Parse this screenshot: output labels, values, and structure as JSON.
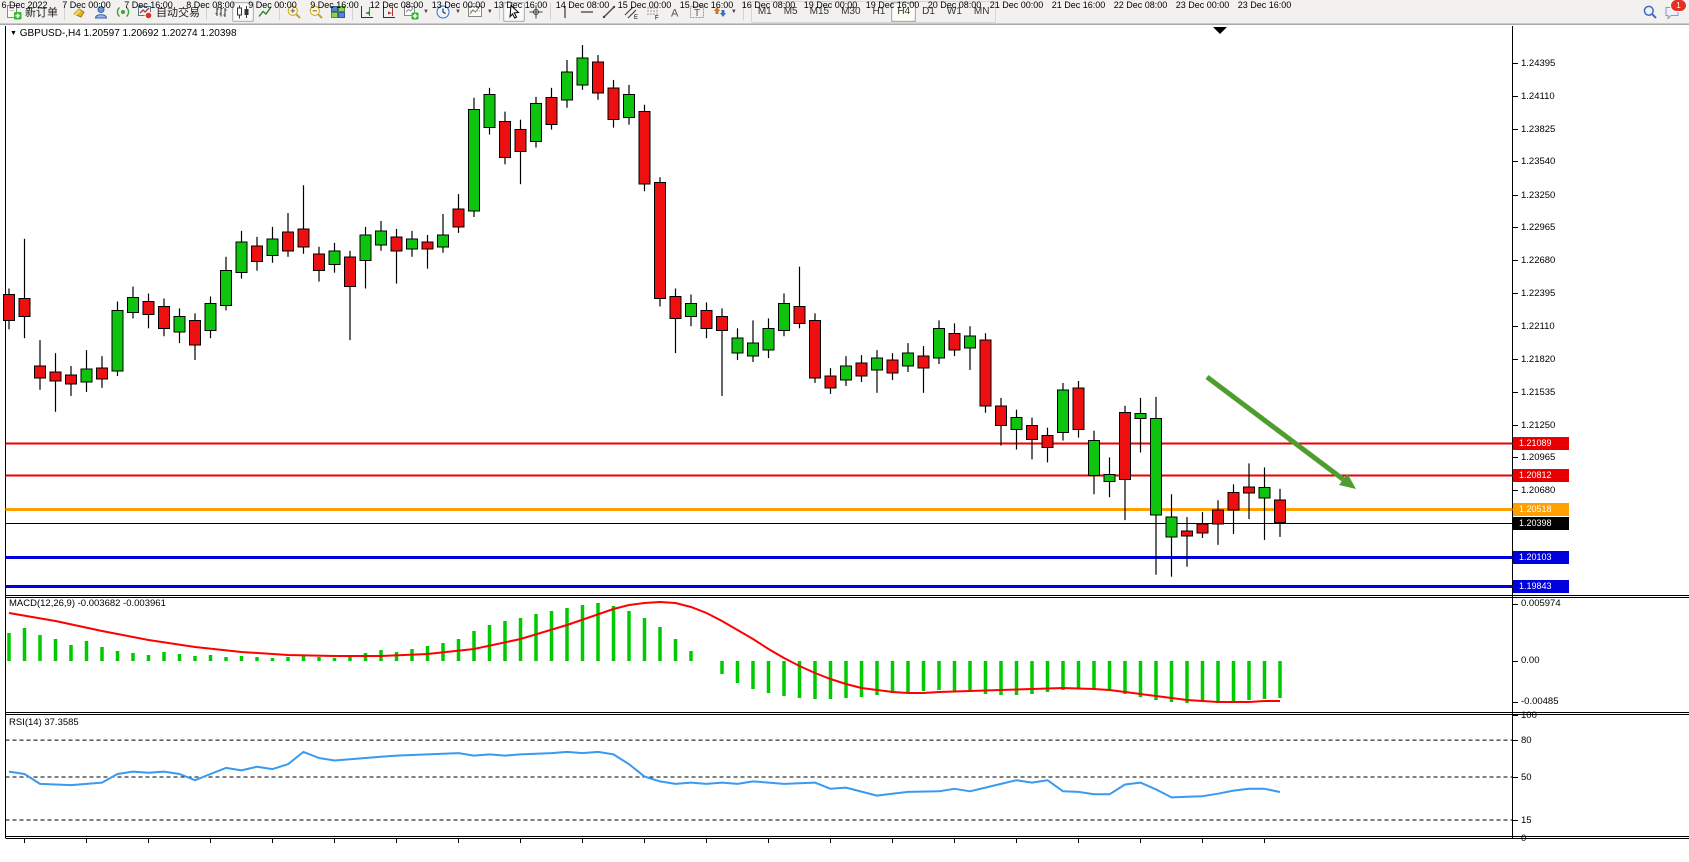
{
  "toolbar": {
    "new_order_label": "新订单",
    "autotrade_label": "自动交易",
    "timeframes": [
      "M1",
      "M5",
      "M15",
      "M30",
      "H1",
      "H4",
      "D1",
      "W1",
      "MN"
    ],
    "selected_timeframe": "H4",
    "notification_count": "1"
  },
  "chart": {
    "title": "GBPUSD-,H4  1.20597 1.20692 1.20274 1.20398",
    "symbol_period": "GBPUSD-,H4"
  },
  "macd_label": "MACD(12,26,9) -0.003682 -0.003961",
  "rsi_label": "RSI(14) 37.3585",
  "chart_data": {
    "type": "candlestick",
    "symbol": "GBPUSD-",
    "timeframe": "H4",
    "current_bar": {
      "open": 1.20597,
      "high": 1.20692,
      "low": 1.20274,
      "close": 1.20398
    },
    "price_axis_ticks": [
      "1.24395",
      "1.24110",
      "1.23825",
      "1.23540",
      "1.23250",
      "1.22965",
      "1.22680",
      "1.22395",
      "1.22110",
      "1.21820",
      "1.21535",
      "1.21250",
      "1.20965",
      "1.20680"
    ],
    "ylim": [
      1.198,
      1.2472
    ],
    "grid": false,
    "hlines": [
      {
        "price": 1.21089,
        "label": "1.21089",
        "color": "#e80000",
        "width": 2
      },
      {
        "price": 1.20812,
        "label": "1.20812",
        "color": "#e80000",
        "width": 2
      },
      {
        "price": 1.20518,
        "label": "1.20518",
        "color": "#ffa000",
        "width": 3
      },
      {
        "price": 1.20398,
        "label": "1.20398",
        "color": "#000000",
        "width": 1
      },
      {
        "price": 1.20103,
        "label": "1.20103",
        "color": "#0000dd",
        "width": 3
      },
      {
        "price": 1.19843,
        "label": "1.19843",
        "color": "#0000dd",
        "width": 3
      }
    ],
    "x_labels": [
      "6 Dec 2022",
      "7 Dec 00:00",
      "7 Dec 16:00",
      "8 Dec 08:00",
      "9 Dec 00:00",
      "9 Dec 16:00",
      "12 Dec 08:00",
      "13 Dec 00:00",
      "13 Dec 16:00",
      "14 Dec 08:00",
      "15 Dec 00:00",
      "15 Dec 16:00",
      "16 Dec 08:00",
      "19 Dec 00:00",
      "19 Dec 16:00",
      "20 Dec 08:00",
      "21 Dec 00:00",
      "21 Dec 16:00",
      "22 Dec 08:00",
      "23 Dec 00:00",
      "23 Dec 16:00"
    ],
    "bull_color": "#0fc40f",
    "bear_color": "#ee1010",
    "candles": [
      [
        1.22382,
        1.22434,
        1.22079,
        1.22157
      ],
      [
        1.22347,
        1.22866,
        1.22002,
        1.22192
      ],
      [
        1.2176,
        1.21985,
        1.21553,
        1.21656
      ],
      [
        1.21708,
        1.21872,
        1.21362,
        1.2163
      ],
      [
        1.21682,
        1.2176,
        1.215,
        1.21604
      ],
      [
        1.21621,
        1.21898,
        1.21535,
        1.21734
      ],
      [
        1.21742,
        1.21846,
        1.2157,
        1.21647
      ],
      [
        1.21717,
        1.22321,
        1.21673,
        1.22244
      ],
      [
        1.22226,
        1.22451,
        1.22174,
        1.22356
      ],
      [
        1.22321,
        1.2239,
        1.22088,
        1.22209
      ],
      [
        1.22278,
        1.22347,
        1.22019,
        1.22088
      ],
      [
        1.22054,
        1.22261,
        1.21959,
        1.22192
      ],
      [
        1.22157,
        1.22218,
        1.21812,
        1.21941
      ],
      [
        1.22071,
        1.22365,
        1.22002,
        1.22304
      ],
      [
        1.22287,
        1.2271,
        1.22244,
        1.22589
      ],
      [
        1.22572,
        1.22935,
        1.2252,
        1.2284
      ],
      [
        1.22805,
        1.22883,
        1.22589,
        1.22667
      ],
      [
        1.22719,
        1.2297,
        1.22658,
        1.22866
      ],
      [
        1.22926,
        1.2309,
        1.2271,
        1.22762
      ],
      [
        1.22952,
        1.23332,
        1.22736,
        1.22797
      ],
      [
        1.22736,
        1.22797,
        1.22494,
        1.22589
      ],
      [
        1.22641,
        1.22831,
        1.22572,
        1.22762
      ],
      [
        1.2271,
        1.22762,
        1.21985,
        1.22451
      ],
      [
        1.22676,
        1.2297,
        1.22434,
        1.229
      ],
      [
        1.22814,
        1.23021,
        1.22762,
        1.22935
      ],
      [
        1.22883,
        1.22952,
        1.22477,
        1.22762
      ],
      [
        1.22779,
        1.22935,
        1.2271,
        1.22866
      ],
      [
        1.2284,
        1.229,
        1.22607,
        1.22779
      ],
      [
        1.22797,
        1.23082,
        1.22745,
        1.229
      ],
      [
        1.23125,
        1.23255,
        1.22918,
        1.2297
      ],
      [
        1.23108,
        1.24093,
        1.23056,
        1.23989
      ],
      [
        1.23833,
        1.24179,
        1.23773,
        1.24119
      ],
      [
        1.23885,
        1.23972,
        1.23514,
        1.23574
      ],
      [
        1.23816,
        1.23902,
        1.23341,
        1.23626
      ],
      [
        1.23712,
        1.24101,
        1.2366,
        1.24041
      ],
      [
        1.24093,
        1.24179,
        1.23816,
        1.23859
      ],
      [
        1.24075,
        1.24421,
        1.24006,
        1.24317
      ],
      [
        1.24205,
        1.24551,
        1.24162,
        1.24438
      ],
      [
        1.24404,
        1.24464,
        1.24075,
        1.24136
      ],
      [
        1.24179,
        1.24248,
        1.23833,
        1.23902
      ],
      [
        1.2392,
        1.24205,
        1.23859,
        1.24119
      ],
      [
        1.23972,
        1.24032,
        1.2328,
        1.23341
      ],
      [
        1.23358,
        1.23401,
        1.22278,
        1.22347
      ],
      [
        1.22365,
        1.22434,
        1.21872,
        1.22174
      ],
      [
        1.22192,
        1.22382,
        1.22106,
        1.22304
      ],
      [
        1.22244,
        1.22313,
        1.22002,
        1.22088
      ],
      [
        1.22192,
        1.22261,
        1.215,
        1.22071
      ],
      [
        1.21872,
        1.22088,
        1.21812,
        1.22002
      ],
      [
        1.21846,
        1.22157,
        1.21795,
        1.21959
      ],
      [
        1.21898,
        1.22174,
        1.21829,
        1.22088
      ],
      [
        1.22071,
        1.22391,
        1.22019,
        1.22304
      ],
      [
        1.22278,
        1.22624,
        1.22088,
        1.22131
      ],
      [
        1.22157,
        1.22218,
        1.21613,
        1.21656
      ],
      [
        1.21673,
        1.21742,
        1.21518,
        1.2157
      ],
      [
        1.21639,
        1.21846,
        1.21587,
        1.2176
      ],
      [
        1.21786,
        1.21855,
        1.21621,
        1.21673
      ],
      [
        1.21726,
        1.21898,
        1.21527,
        1.21829
      ],
      [
        1.21812,
        1.21872,
        1.21639,
        1.21699
      ],
      [
        1.2176,
        1.21959,
        1.21708,
        1.21872
      ],
      [
        1.21846,
        1.21933,
        1.21527,
        1.21742
      ],
      [
        1.21829,
        1.22157,
        1.21777,
        1.22088
      ],
      [
        1.22045,
        1.22131,
        1.21846,
        1.21898
      ],
      [
        1.21915,
        1.22106,
        1.21726,
        1.22019
      ],
      [
        1.21985,
        1.22045,
        1.21354,
        1.21414
      ],
      [
        1.21414,
        1.21483,
        1.21068,
        1.21241
      ],
      [
        1.21207,
        1.2138,
        1.21034,
        1.21311
      ],
      [
        1.21241,
        1.21311,
        1.20948,
        1.21121
      ],
      [
        1.21155,
        1.21224,
        1.20922,
        1.21051
      ],
      [
        1.21181,
        1.21613,
        1.21112,
        1.21553
      ],
      [
        1.2157,
        1.2163,
        1.21138,
        1.21207
      ],
      [
        1.20809,
        1.21198,
        1.20645,
        1.21112
      ],
      [
        1.20757,
        1.20965,
        1.20619,
        1.20818
      ],
      [
        1.21354,
        1.21414,
        1.2042,
        1.20775
      ],
      [
        1.21302,
        1.21483,
        1.21008,
        1.21346
      ],
      [
        1.20464,
        1.21492,
        1.19945,
        1.21302
      ],
      [
        1.20274,
        1.20645,
        1.19928,
        1.20446
      ],
      [
        1.20326,
        1.20446,
        1.20015,
        1.20282
      ],
      [
        1.20386,
        1.2049,
        1.20265,
        1.20309
      ],
      [
        1.20507,
        1.20593,
        1.20205,
        1.20386
      ],
      [
        1.20662,
        1.20731,
        1.203,
        1.20507
      ],
      [
        1.20706,
        1.20913,
        1.20429,
        1.20654
      ],
      [
        1.20611,
        1.20878,
        1.20248,
        1.20702
      ],
      [
        1.20597,
        1.20692,
        1.20274,
        1.20398
      ]
    ],
    "indicators": [
      {
        "name": "MACD",
        "params": "12,26,9",
        "current_values": [
          -0.003682,
          -0.003961
        ],
        "axis_labels": [
          "0.005974",
          "0.00",
          "-0.00485"
        ],
        "histogram_color": "#00cb00",
        "signal_color": "#ff0000",
        "histogram": [
          0.0028,
          0.0033,
          0.0026,
          0.0022,
          0.0016,
          0.002,
          0.0014,
          0.001,
          0.0008,
          0.0006,
          0.0009,
          0.0007,
          0.0005,
          0.0006,
          0.0004,
          0.0005,
          0.0004,
          0.0003,
          0.0004,
          0.0005,
          0.0004,
          0.0003,
          0.0005,
          0.0008,
          0.0011,
          0.0009,
          0.0012,
          0.0015,
          0.0018,
          0.0022,
          0.003,
          0.0036,
          0.004,
          0.0043,
          0.0047,
          0.005,
          0.0053,
          0.0056,
          0.0058,
          0.0055,
          0.005,
          0.0043,
          0.0034,
          0.0022,
          0.001,
          0.0,
          -0.0013,
          -0.0022,
          -0.0028,
          -0.0032,
          -0.0035,
          -0.0037,
          -0.0038,
          -0.0038,
          -0.0037,
          -0.0036,
          -0.0034,
          -0.0032,
          -0.0031,
          -0.003,
          -0.0029,
          -0.003,
          -0.0031,
          -0.0033,
          -0.0034,
          -0.0034,
          -0.0033,
          -0.0031,
          -0.0029,
          -0.0028,
          -0.0028,
          -0.003,
          -0.0033,
          -0.0036,
          -0.0039,
          -0.0041,
          -0.0042,
          -0.0041,
          -0.004,
          -0.004,
          -0.0039,
          -0.0038,
          -0.0037
        ],
        "signal_points": [
          [
            0,
            0.0048
          ],
          [
            3,
            0.004
          ],
          [
            6,
            0.003
          ],
          [
            9,
            0.0021
          ],
          [
            12,
            0.0014
          ],
          [
            15,
            0.0009
          ],
          [
            18,
            0.0006
          ],
          [
            21,
            0.0005
          ],
          [
            24,
            0.0005
          ],
          [
            27,
            0.0007
          ],
          [
            30,
            0.0012
          ],
          [
            33,
            0.0022
          ],
          [
            36,
            0.0036
          ],
          [
            39,
            0.0052
          ],
          [
            40,
            0.0056
          ],
          [
            41,
            0.0058
          ],
          [
            42,
            0.0059
          ],
          [
            43,
            0.0058
          ],
          [
            44,
            0.0054
          ],
          [
            45,
            0.0048
          ],
          [
            46,
            0.004
          ],
          [
            47,
            0.0031
          ],
          [
            48,
            0.0022
          ],
          [
            49,
            0.0012
          ],
          [
            50,
            0.0003
          ],
          [
            51,
            -0.0005
          ],
          [
            52,
            -0.0012
          ],
          [
            53,
            -0.0018
          ],
          [
            54,
            -0.0023
          ],
          [
            55,
            -0.0027
          ],
          [
            56,
            -0.0029
          ],
          [
            57,
            -0.0031
          ],
          [
            58,
            -0.0032
          ],
          [
            59,
            -0.0032
          ],
          [
            60,
            -0.0031
          ],
          [
            62,
            -0.003
          ],
          [
            64,
            -0.0029
          ],
          [
            66,
            -0.0028
          ],
          [
            68,
            -0.0027
          ],
          [
            70,
            -0.0028
          ],
          [
            71,
            -0.0029
          ],
          [
            72,
            -0.0031
          ],
          [
            73,
            -0.0033
          ],
          [
            74,
            -0.0035
          ],
          [
            75,
            -0.0037
          ],
          [
            76,
            -0.0039
          ],
          [
            77,
            -0.004
          ],
          [
            78,
            -0.0041
          ],
          [
            80,
            -0.0041
          ],
          [
            81,
            -0.004
          ],
          [
            82,
            -0.004
          ]
        ]
      },
      {
        "name": "RSI",
        "params": "14",
        "current_value": 37.3585,
        "levels": [
          "100",
          "80",
          "50",
          "15",
          "0"
        ],
        "level_values": [
          100,
          80,
          50,
          15,
          0
        ],
        "dashed_levels": [
          80,
          50,
          15
        ],
        "line_color": "#3a99f0",
        "points": [
          [
            0,
            54
          ],
          [
            1,
            52
          ],
          [
            2,
            44
          ],
          [
            4,
            43
          ],
          [
            6,
            45
          ],
          [
            7,
            52
          ],
          [
            8,
            54
          ],
          [
            9,
            53
          ],
          [
            10,
            54
          ],
          [
            11,
            52
          ],
          [
            12,
            47
          ],
          [
            13,
            52
          ],
          [
            14,
            57
          ],
          [
            15,
            55
          ],
          [
            16,
            58
          ],
          [
            17,
            56
          ],
          [
            18,
            60
          ],
          [
            19,
            70
          ],
          [
            20,
            65
          ],
          [
            21,
            63
          ],
          [
            22,
            64
          ],
          [
            23,
            65
          ],
          [
            24,
            66
          ],
          [
            25,
            67
          ],
          [
            27,
            68
          ],
          [
            29,
            69
          ],
          [
            30,
            67
          ],
          [
            31,
            68
          ],
          [
            32,
            67
          ],
          [
            33,
            68
          ],
          [
            35,
            69
          ],
          [
            36,
            70
          ],
          [
            37,
            69
          ],
          [
            38,
            70
          ],
          [
            39,
            68
          ],
          [
            40,
            60
          ],
          [
            41,
            50
          ],
          [
            42,
            46
          ],
          [
            43,
            44
          ],
          [
            44,
            45
          ],
          [
            45,
            44
          ],
          [
            46,
            45
          ],
          [
            47,
            44
          ],
          [
            48,
            46
          ],
          [
            49,
            45
          ],
          [
            50,
            44
          ],
          [
            52,
            45
          ],
          [
            53,
            40
          ],
          [
            54,
            41
          ],
          [
            56,
            34.5
          ],
          [
            58,
            37.5
          ],
          [
            60,
            38
          ],
          [
            61,
            40
          ],
          [
            62,
            38
          ],
          [
            64,
            44
          ],
          [
            65,
            47
          ],
          [
            66,
            45
          ],
          [
            67,
            47
          ],
          [
            68,
            38
          ],
          [
            69,
            37.5
          ],
          [
            70,
            35.5
          ],
          [
            71,
            35.5
          ],
          [
            72,
            43.5
          ],
          [
            73,
            45
          ],
          [
            74,
            39.5
          ],
          [
            75,
            33
          ],
          [
            76,
            33.5
          ],
          [
            77,
            34
          ],
          [
            78,
            36
          ],
          [
            79,
            38.5
          ],
          [
            80,
            40
          ],
          [
            81,
            40
          ],
          [
            82,
            37.4
          ]
        ]
      }
    ],
    "annotations": [
      {
        "type": "arrow",
        "from": [
          1207,
          377
        ],
        "to": [
          1356,
          489
        ],
        "color": "#4f9d2f",
        "width": 5
      }
    ]
  }
}
